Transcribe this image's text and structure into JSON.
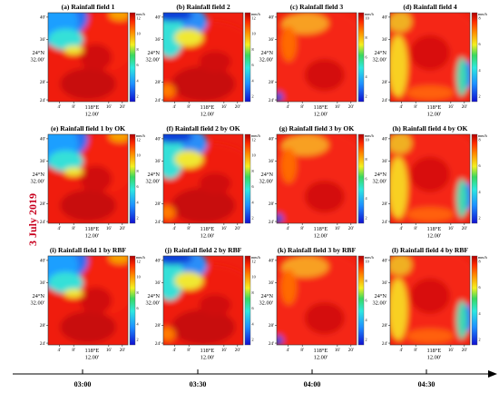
{
  "figure": {
    "date_label": "3 July 2019",
    "times": [
      "03:00",
      "03:30",
      "04:00",
      "04:30"
    ],
    "lat_label": [
      "24°N",
      "32.00'"
    ],
    "lon_label": [
      "118°E",
      "12.00'"
    ]
  },
  "chart_data": [
    {
      "type": "heatmap",
      "title": "(a) Rainfall field 1",
      "pattern": 1,
      "unit": "mm/h",
      "scale_ticks": [
        "12",
        "10",
        "8",
        "6",
        "4",
        "2"
      ],
      "y_ticks": [
        "40'",
        "36'",
        "28'",
        "24'"
      ],
      "x_ticks": [
        "4'",
        "8'",
        "16'",
        "20'"
      ]
    },
    {
      "type": "heatmap",
      "title": "(b) Rainfall field 2",
      "pattern": 2,
      "unit": "mm/h",
      "scale_ticks": [
        "12",
        "10",
        "8",
        "6",
        "4",
        "2"
      ],
      "y_ticks": [
        "40'",
        "36'",
        "28'",
        "24'"
      ],
      "x_ticks": [
        "4'",
        "8'",
        "16'",
        "20'"
      ]
    },
    {
      "type": "heatmap",
      "title": "(c) Rainfall field 3",
      "pattern": 3,
      "unit": "mm/h",
      "scale_ticks": [
        "10",
        "8",
        "6",
        "4",
        "2"
      ],
      "y_ticks": [
        "40'",
        "36'",
        "28'",
        "24'"
      ],
      "x_ticks": [
        "4'",
        "8'",
        "16'",
        "20'"
      ]
    },
    {
      "type": "heatmap",
      "title": "(d) Rainfall field 4",
      "pattern": 4,
      "unit": "mm/h",
      "scale_ticks": [
        "8",
        "6",
        "4",
        "2"
      ],
      "y_ticks": [
        "40'",
        "36'",
        "28'",
        "24'"
      ],
      "x_ticks": [
        "4'",
        "8'",
        "16'",
        "20'"
      ]
    },
    {
      "type": "heatmap",
      "title": "(e) Rainfall field 1 by OK",
      "pattern": 1,
      "unit": "mm/h",
      "scale_ticks": [
        "12",
        "10",
        "8",
        "6",
        "4",
        "2"
      ],
      "y_ticks": [
        "40'",
        "36'",
        "28'",
        "24'"
      ],
      "x_ticks": [
        "4'",
        "8'",
        "16'",
        "20'"
      ]
    },
    {
      "type": "heatmap",
      "title": "(f) Rainfall field 2 by OK",
      "pattern": 2,
      "unit": "mm/h",
      "scale_ticks": [
        "12",
        "10",
        "8",
        "6",
        "4",
        "2"
      ],
      "y_ticks": [
        "40'",
        "36'",
        "28'",
        "24'"
      ],
      "x_ticks": [
        "4'",
        "8'",
        "16'",
        "20'"
      ]
    },
    {
      "type": "heatmap",
      "title": "(g) Rainfall field 3 by OK",
      "pattern": 3,
      "unit": "mm/h",
      "scale_ticks": [
        "10",
        "8",
        "6",
        "4",
        "2"
      ],
      "y_ticks": [
        "40'",
        "36'",
        "28'",
        "24'"
      ],
      "x_ticks": [
        "4'",
        "8'",
        "16'",
        "20'"
      ]
    },
    {
      "type": "heatmap",
      "title": "(h) Rainfall field 4 by OK",
      "pattern": 4,
      "unit": "mm/h",
      "scale_ticks": [
        "8",
        "6",
        "4",
        "2"
      ],
      "y_ticks": [
        "40'",
        "36'",
        "28'",
        "24'"
      ],
      "x_ticks": [
        "4'",
        "8'",
        "16'",
        "20'"
      ]
    },
    {
      "type": "heatmap",
      "title": "(i) Rainfall field 1 by RBF",
      "pattern": 1,
      "unit": "mm/h",
      "scale_ticks": [
        "12",
        "10",
        "8",
        "6",
        "4",
        "2"
      ],
      "y_ticks": [
        "40'",
        "36'",
        "28'",
        "24'"
      ],
      "x_ticks": [
        "4'",
        "8'",
        "16'",
        "20'"
      ]
    },
    {
      "type": "heatmap",
      "title": "(j) Rainfall field 2 by RBF",
      "pattern": 2,
      "unit": "mm/h",
      "scale_ticks": [
        "12",
        "10",
        "8",
        "6",
        "4",
        "2"
      ],
      "y_ticks": [
        "40'",
        "36'",
        "28'",
        "24'"
      ],
      "x_ticks": [
        "4'",
        "8'",
        "16'",
        "20'"
      ]
    },
    {
      "type": "heatmap",
      "title": "(k) Rainfall field 3 by RBF",
      "pattern": 3,
      "unit": "mm/h",
      "scale_ticks": [
        "10",
        "8",
        "6",
        "4",
        "2"
      ],
      "y_ticks": [
        "40'",
        "36'",
        "28'",
        "24'"
      ],
      "x_ticks": [
        "4'",
        "8'",
        "16'",
        "20'"
      ]
    },
    {
      "type": "heatmap",
      "title": "(l) Rainfall field 4 by RBF",
      "pattern": 4,
      "unit": "mm/h",
      "scale_ticks": [
        "8",
        "6",
        "4",
        "2"
      ],
      "y_ticks": [
        "40'",
        "36'",
        "28'",
        "24'"
      ],
      "x_ticks": [
        "4'",
        "8'",
        "16'",
        "20'"
      ]
    }
  ]
}
